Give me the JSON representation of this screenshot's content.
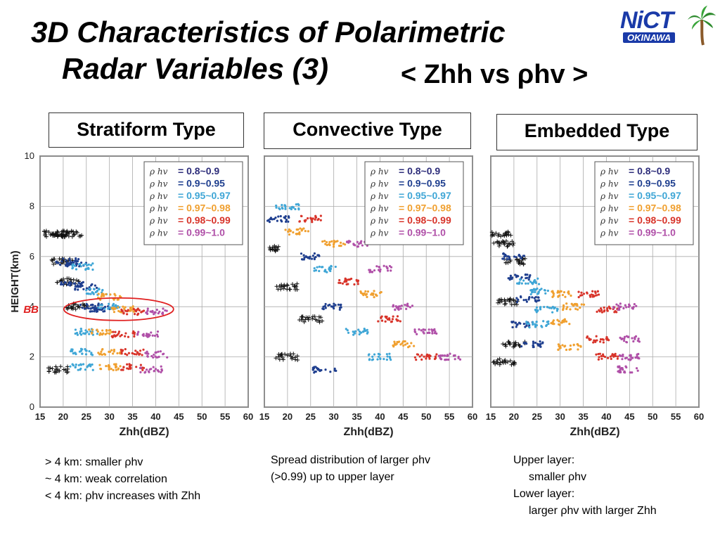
{
  "title": {
    "line1": "3D Characteristics of Polarimetric",
    "line2": "Radar Variables (3)",
    "subtitle": "< Zhh vs ρhv >"
  },
  "logo": {
    "text": "NiCT",
    "sub": "OKINAWA"
  },
  "panels": [
    {
      "label": "Stratiform Type",
      "annotation": "BB"
    },
    {
      "label": "Convective Type"
    },
    {
      "label": "Embedded Type"
    }
  ],
  "legend": [
    {
      "symbol": "ρ hv",
      "range": "= 0.8~0.9",
      "color": "#2d2d7a"
    },
    {
      "symbol": "ρ hv",
      "range": "= 0.9~0.95",
      "color": "#1f3f8f"
    },
    {
      "symbol": "ρ hv",
      "range": "= 0.95~0.97",
      "color": "#3fa6d6"
    },
    {
      "symbol": "ρ hv",
      "range": "= 0.97~0.98",
      "color": "#f0a030"
    },
    {
      "symbol": "ρ hv",
      "range": "= 0.98~0.99",
      "color": "#d8342a"
    },
    {
      "symbol": "ρ hv",
      "range": "= 0.99~1.0",
      "color": "#b050a8"
    }
  ],
  "chart_data": [
    {
      "type": "scatter",
      "title": "Stratiform Type",
      "xlabel": "Zhh(dBZ)",
      "ylabel": "HEIGHT(km)",
      "xlim": [
        15,
        60
      ],
      "ylim": [
        0,
        10
      ],
      "xticks": [
        "15",
        "20",
        "25",
        "30",
        "35",
        "40",
        "45",
        "50",
        "55",
        "60"
      ],
      "yticks": [
        "0",
        "2",
        "4",
        "6",
        "8",
        "10"
      ],
      "series": [
        {
          "name": "ρ hv = 0.8~0.9",
          "points": [
            [
              18,
              6.9
            ],
            [
              20,
              6.9
            ],
            [
              22,
              6.9
            ],
            [
              20,
              5.8
            ],
            [
              21,
              5.0
            ],
            [
              19,
              1.5
            ],
            [
              23,
              4.0
            ]
          ]
        },
        {
          "name": "ρ hv = 0.9~0.95",
          "points": [
            [
              21,
              5.8
            ],
            [
              23,
              5.7
            ],
            [
              22,
              4.9
            ],
            [
              25,
              4.8
            ],
            [
              26,
              4.0
            ],
            [
              28,
              3.9
            ]
          ]
        },
        {
          "name": "ρ hv = 0.95~0.97",
          "points": [
            [
              24,
              5.6
            ],
            [
              27,
              4.6
            ],
            [
              30,
              4.0
            ],
            [
              25,
              3.0
            ],
            [
              24,
              2.2
            ],
            [
              24,
              1.6
            ]
          ]
        },
        {
          "name": "ρ hv = 0.97~0.98",
          "points": [
            [
              30,
              4.4
            ],
            [
              33,
              3.9
            ],
            [
              28,
              3.0
            ],
            [
              30,
              2.2
            ],
            [
              30,
              1.6
            ]
          ]
        },
        {
          "name": "ρ hv = 0.98~0.99",
          "points": [
            [
              35,
              3.8
            ],
            [
              33,
              2.9
            ],
            [
              35,
              2.2
            ],
            [
              35,
              1.6
            ]
          ]
        },
        {
          "name": "ρ hv = 0.99~1.0",
          "points": [
            [
              40,
              3.8
            ],
            [
              38,
              2.9
            ],
            [
              40,
              2.1
            ],
            [
              39,
              1.5
            ]
          ]
        }
      ]
    },
    {
      "type": "scatter",
      "title": "Convective Type",
      "xlabel": "Zhh(dBZ)",
      "ylabel": "",
      "xlim": [
        15,
        60
      ],
      "ylim": [
        0,
        10
      ],
      "xticks": [
        "15",
        "20",
        "25",
        "30",
        "35",
        "40",
        "45",
        "50",
        "55",
        "60"
      ],
      "yticks": [],
      "series": [
        {
          "name": "ρ hv = 0.8~0.9",
          "points": [
            [
              16,
              6.3
            ],
            [
              20,
              4.8
            ],
            [
              25,
              3.5
            ],
            [
              20,
              2.0
            ]
          ]
        },
        {
          "name": "ρ hv = 0.9~0.95",
          "points": [
            [
              18,
              7.5
            ],
            [
              25,
              6.0
            ],
            [
              30,
              4.0
            ],
            [
              28,
              1.5
            ]
          ]
        },
        {
          "name": "ρ hv = 0.95~0.97",
          "points": [
            [
              20,
              8.0
            ],
            [
              28,
              5.5
            ],
            [
              35,
              3.0
            ],
            [
              40,
              2.0
            ]
          ]
        },
        {
          "name": "ρ hv = 0.97~0.98",
          "points": [
            [
              22,
              7.0
            ],
            [
              30,
              6.5
            ],
            [
              38,
              4.5
            ],
            [
              45,
              2.5
            ]
          ]
        },
        {
          "name": "ρ hv = 0.98~0.99",
          "points": [
            [
              25,
              7.5
            ],
            [
              33,
              5.0
            ],
            [
              42,
              3.5
            ],
            [
              50,
              2.0
            ]
          ]
        },
        {
          "name": "ρ hv = 0.99~1.0",
          "points": [
            [
              35,
              6.5
            ],
            [
              40,
              5.5
            ],
            [
              45,
              4.0
            ],
            [
              50,
              3.0
            ],
            [
              55,
              2.0
            ]
          ]
        }
      ]
    },
    {
      "type": "scatter",
      "title": "Embedded Type",
      "xlabel": "Zhh(dBZ)",
      "ylabel": "",
      "xlim": [
        15,
        60
      ],
      "ylim": [
        0,
        10
      ],
      "xticks": [
        "15",
        "20",
        "25",
        "30",
        "35",
        "40",
        "45",
        "50",
        "55",
        "60"
      ],
      "yticks": [],
      "series": [
        {
          "name": "ρ hv = 0.8~0.9",
          "points": [
            [
              17,
              6.9
            ],
            [
              18,
              6.5
            ],
            [
              20,
              5.8
            ],
            [
              19,
              4.2
            ],
            [
              20,
              2.5
            ],
            [
              18,
              1.8
            ]
          ]
        },
        {
          "name": "ρ hv = 0.9~0.95",
          "points": [
            [
              20,
              6.0
            ],
            [
              21,
              5.2
            ],
            [
              23,
              4.3
            ],
            [
              22,
              3.3
            ],
            [
              24,
              2.5
            ]
          ]
        },
        {
          "name": "ρ hv = 0.95~0.97",
          "points": [
            [
              23,
              5.0
            ],
            [
              26,
              4.6
            ],
            [
              27,
              3.9
            ],
            [
              25,
              3.3
            ]
          ]
        },
        {
          "name": "ρ hv = 0.97~0.98",
          "points": [
            [
              30,
              4.5
            ],
            [
              33,
              4.0
            ],
            [
              30,
              3.4
            ],
            [
              32,
              2.4
            ]
          ]
        },
        {
          "name": "ρ hv = 0.98~0.99",
          "points": [
            [
              36,
              4.5
            ],
            [
              40,
              3.9
            ],
            [
              38,
              2.7
            ],
            [
              40,
              2.0
            ]
          ]
        },
        {
          "name": "ρ hv = 0.99~1.0",
          "points": [
            [
              44,
              4.0
            ],
            [
              45,
              2.7
            ],
            [
              45,
              2.0
            ],
            [
              45,
              1.5
            ]
          ]
        }
      ]
    }
  ],
  "notes": {
    "stratiform": [
      "> 4 km: smaller ρhv",
      "~ 4 km: weak correlation",
      "< 4 km: ρhv increases with Zhh"
    ],
    "convective": [
      "Spread distribution of larger ρhv",
      "(>0.99) up to upper layer"
    ],
    "embedded": [
      "Upper layer:",
      "smaller ρhv",
      "Lower layer:",
      "larger ρhv with larger Zhh"
    ]
  }
}
